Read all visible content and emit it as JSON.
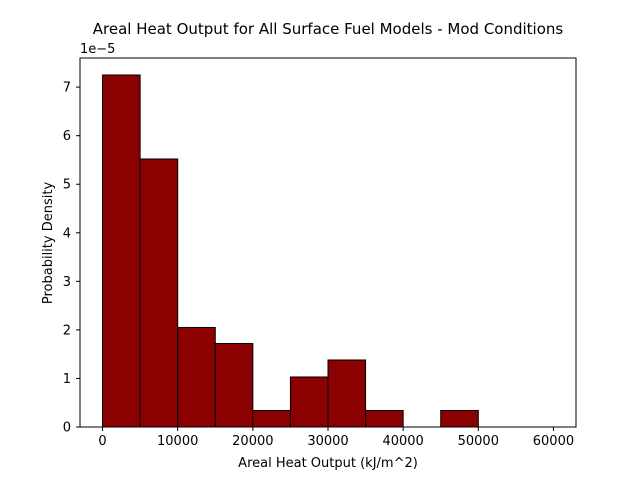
{
  "chart_data": {
    "type": "bar",
    "title": "Areal Heat Output for All Surface Fuel Models - Mod Conditions",
    "xlabel": "Areal Heat Output (kJ/m^2)",
    "ylabel": "Probability Density",
    "y_offset_label": "1e−5",
    "y_scale": 1e-05,
    "bin_edges": [
      0,
      5000,
      10000,
      15000,
      20000,
      25000,
      30000,
      35000,
      40000,
      45000,
      50000,
      55000,
      60000
    ],
    "values": [
      7.25,
      5.52,
      2.05,
      1.72,
      0.34,
      1.03,
      1.38,
      0.34,
      0,
      0.34,
      0,
      0
    ],
    "xlim": [
      -3000,
      63000
    ],
    "ylim": [
      0,
      7.6
    ],
    "xticks": [
      0,
      10000,
      20000,
      30000,
      40000,
      50000,
      60000
    ],
    "xtick_labels": [
      "0",
      "10000",
      "20000",
      "30000",
      "40000",
      "50000",
      "60000"
    ],
    "yticks": [
      0,
      1,
      2,
      3,
      4,
      5,
      6,
      7
    ],
    "ytick_labels": [
      "0",
      "1",
      "2",
      "3",
      "4",
      "5",
      "6",
      "7"
    ],
    "grid": false,
    "bar_color": "#8b0000",
    "edge_color": "#000000"
  }
}
